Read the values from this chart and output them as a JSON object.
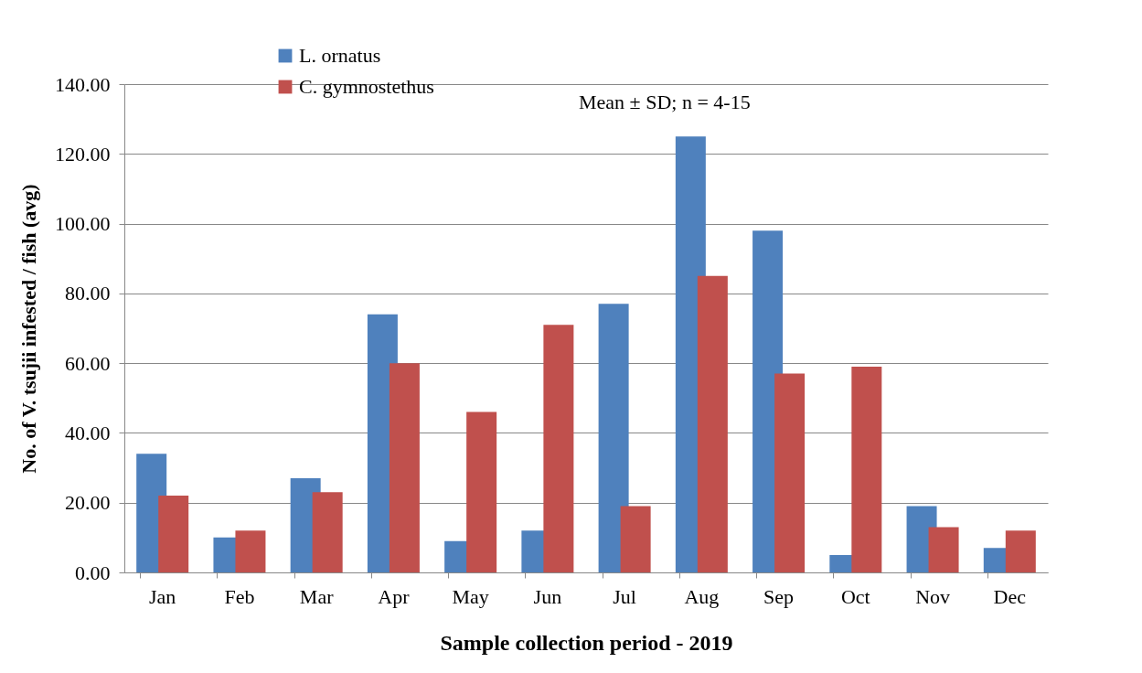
{
  "chart_data": {
    "type": "bar",
    "xlabel": "Sample collection period - 2019",
    "ylabel": "No. of V. tsujii infested  / fish (avg)",
    "annotations": [
      "Mean ± SD; n = 4-15"
    ],
    "categories": [
      "Jan",
      "Feb",
      "Mar",
      "Apr",
      "May",
      "Jun",
      "Jul",
      "Aug",
      "Sep",
      "Oct",
      "Nov",
      "Dec"
    ],
    "series": [
      {
        "name": "L. ornatus",
        "color": "#4f81bd",
        "values": [
          34,
          10,
          27,
          74,
          9,
          12,
          77,
          125,
          98,
          5,
          19,
          7
        ]
      },
      {
        "name": "C. gymnostethus",
        "color": "#c0504d",
        "values": [
          22,
          12,
          23,
          60,
          46,
          71,
          19,
          85,
          57,
          59,
          13,
          12
        ]
      }
    ],
    "ylim": [
      0,
      140
    ],
    "yticks": [
      {
        "value": 0,
        "label": "0.00"
      },
      {
        "value": 20,
        "label": "20.00"
      },
      {
        "value": 40,
        "label": "40.00"
      },
      {
        "value": 60,
        "label": "60.00"
      },
      {
        "value": 80,
        "label": "80.00"
      },
      {
        "value": 100,
        "label": "100.00"
      },
      {
        "value": 120,
        "label": "120.00"
      },
      {
        "value": 140,
        "label": "140.00"
      }
    ],
    "grid": "y",
    "legend": "top left"
  }
}
